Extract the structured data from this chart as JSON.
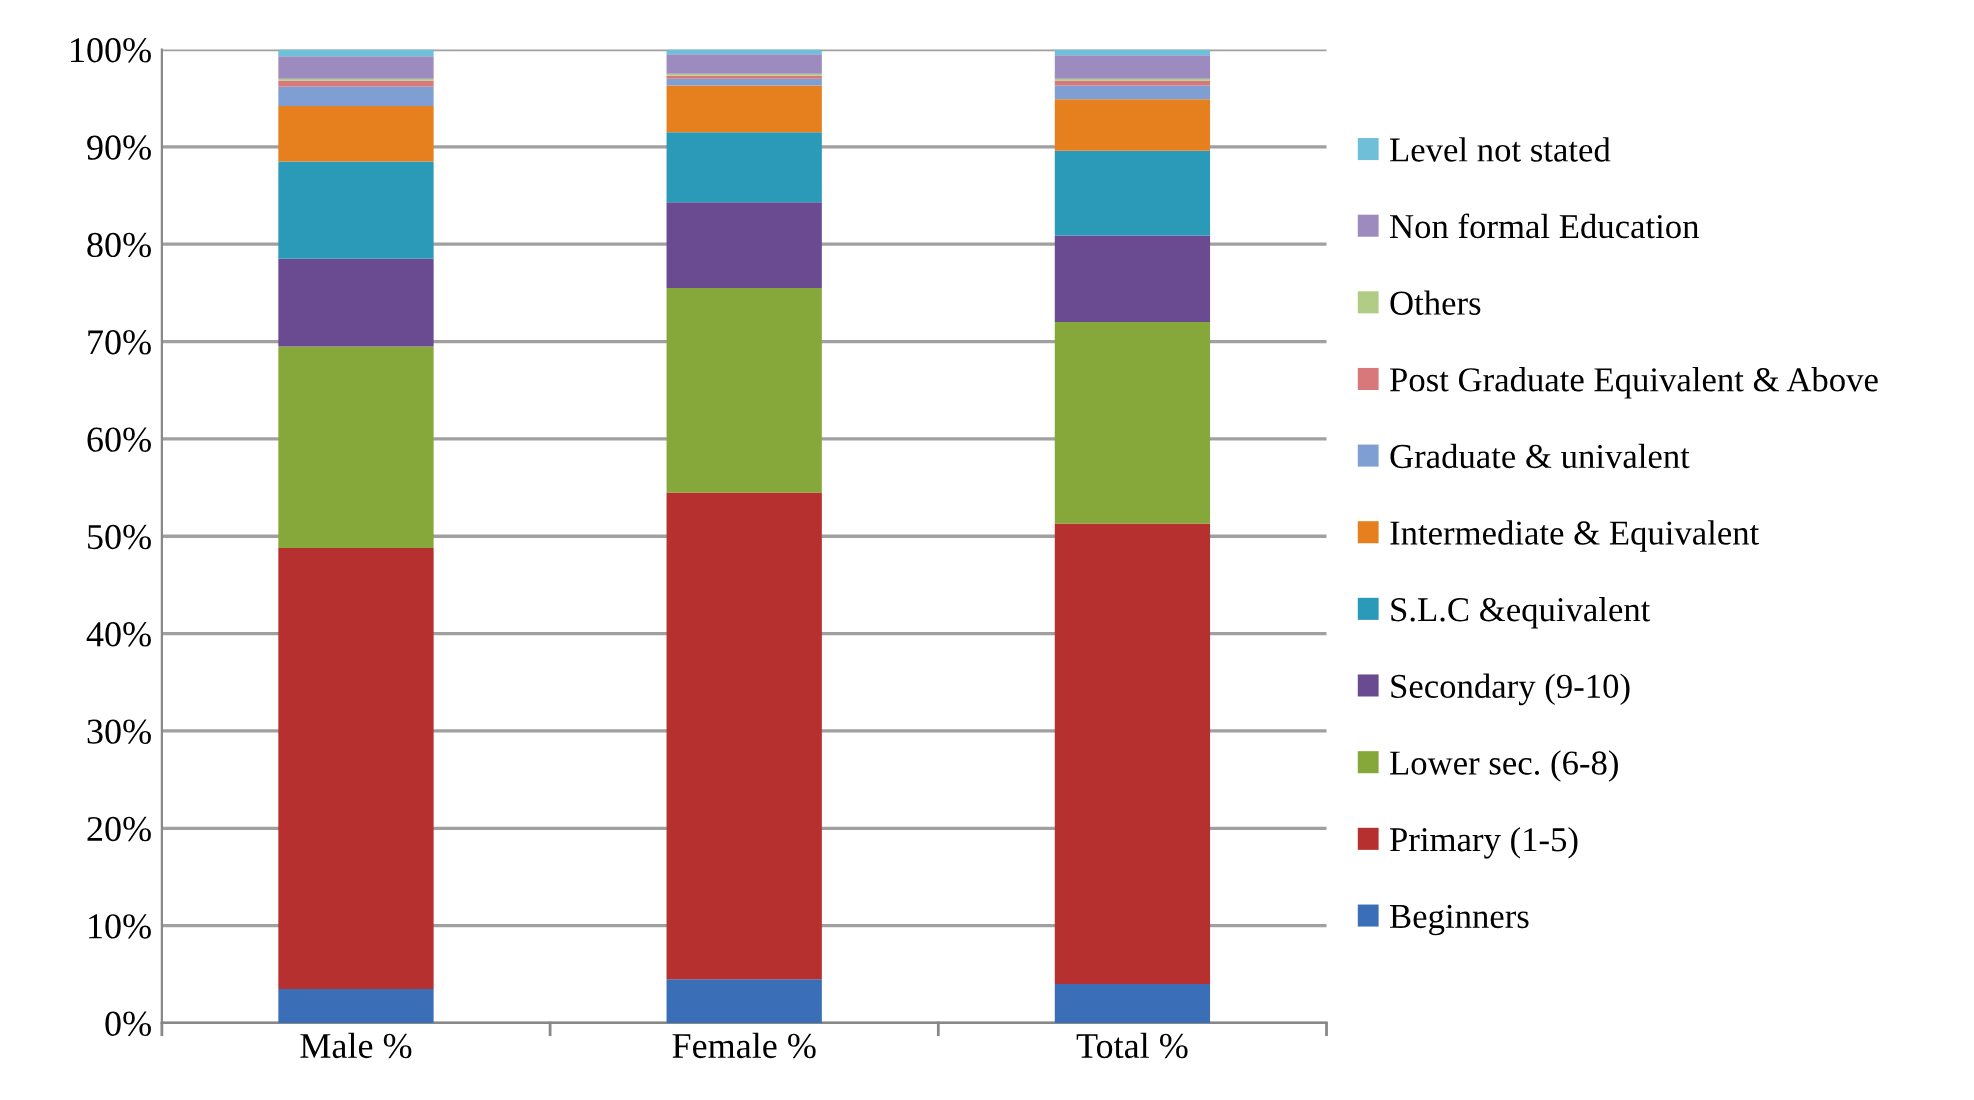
{
  "chart_data": {
    "type": "bar",
    "stacked": true,
    "categories": [
      "Male %",
      "Female %",
      "Total %"
    ],
    "series": [
      {
        "name": "Beginners",
        "color": "#3a6fb7",
        "values": [
          3.5,
          4.5,
          4.0
        ]
      },
      {
        "name": "Primary (1-5)",
        "color": "#b5302e",
        "values": [
          45.3,
          50.0,
          47.3
        ]
      },
      {
        "name": "Lower sec. (6-8)",
        "color": "#86a83a",
        "values": [
          20.7,
          21.0,
          20.7
        ]
      },
      {
        "name": "Secondary (9-10)",
        "color": "#6a4a91",
        "values": [
          9.0,
          8.8,
          8.9
        ]
      },
      {
        "name": "S.L.C &equivalent",
        "color": "#2b9ab8",
        "values": [
          10.0,
          7.2,
          8.7
        ]
      },
      {
        "name": "Intermediate & Equivalent",
        "color": "#e6801f",
        "values": [
          5.7,
          4.8,
          5.3
        ]
      },
      {
        "name": "Graduate & univalent",
        "color": "#7f9fd3",
        "values": [
          2.0,
          0.7,
          1.4
        ]
      },
      {
        "name": "Post Graduate Equivalent & Above",
        "color": "#d9787a",
        "values": [
          0.6,
          0.3,
          0.5
        ]
      },
      {
        "name": "Others",
        "color": "#b1cc85",
        "values": [
          0.2,
          0.2,
          0.2
        ]
      },
      {
        "name": "Non formal Education",
        "color": "#9d8bbf",
        "values": [
          2.3,
          2.0,
          2.4
        ]
      },
      {
        "name": "Level not stated",
        "color": "#6fbfd9",
        "values": [
          0.7,
          0.5,
          0.6
        ]
      }
    ],
    "ylim": [
      0,
      100
    ],
    "yticks": [
      {
        "value": 0,
        "label": "0%"
      },
      {
        "value": 10,
        "label": "10%"
      },
      {
        "value": 20,
        "label": "20%"
      },
      {
        "value": 30,
        "label": "30%"
      },
      {
        "value": 40,
        "label": "40%"
      },
      {
        "value": 50,
        "label": "50%"
      },
      {
        "value": 60,
        "label": "60%"
      },
      {
        "value": 70,
        "label": "70%"
      },
      {
        "value": 80,
        "label": "80%"
      },
      {
        "value": 90,
        "label": "90%"
      },
      {
        "value": 100,
        "label": "100%"
      }
    ],
    "grid": "y",
    "legend": "right"
  }
}
